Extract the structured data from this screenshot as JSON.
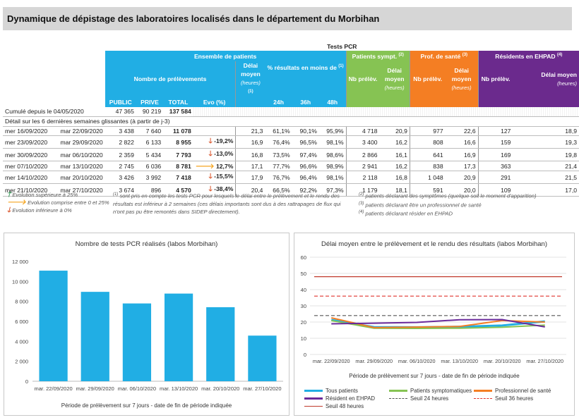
{
  "page": {
    "title": "Dynamique de dépistage des laboratoires localisés dans le département du Morbihan"
  },
  "table": {
    "top_header": "Tests PCR",
    "groups": {
      "ensemble": "Ensemble de patients",
      "sympt": "Patients sympt.",
      "sympt_note": "(2)",
      "prof": "Prof. de santé",
      "prof_note": "(3)",
      "ehpad": "Résidents en EHPAD",
      "ehpad_note": "(4)"
    },
    "subheaders": {
      "nb_prelevements": "Nombre de prélèvements",
      "delai_moyen": "Délai moyen",
      "heures": "(heures)",
      "heures_note": "(1)",
      "pct_resultats": "% résultats en moins de",
      "pct_note": "(1)",
      "public": "PUBLIC",
      "prive": "PRIVE",
      "total": "TOTAL",
      "evo": "Evo (%)",
      "h24": "24h",
      "h36": "36h",
      "h48": "48h",
      "nb_prelev": "Nb prélèv.",
      "delai": "Délai moyen",
      "heures_short": "(heures)"
    },
    "cumul": {
      "label": "Cumulé depuis le 04/05/2020",
      "public": "47 365",
      "prive": "90 219",
      "total": "137 584"
    },
    "detail_label": "Détail sur les 6 dernières semaines glissantes (à partir de j-3)",
    "rows": [
      {
        "start": "mer 16/09/2020",
        "end": "mar 22/09/2020",
        "public": "3 438",
        "prive": "7 640",
        "total": "11 078",
        "trend": "",
        "evo": "",
        "delai": "21,3",
        "p24": "61,1%",
        "p36": "90,1%",
        "p48": "95,9%",
        "s_nb": "4 718",
        "s_d": "20,9",
        "p_nb": "977",
        "p_d": "22,6",
        "e_nb": "127",
        "e_d": "18,9"
      },
      {
        "start": "mer 23/09/2020",
        "end": "mar 29/09/2020",
        "public": "2 822",
        "prive": "6 133",
        "total": "8 955",
        "trend": "down",
        "evo": "-19,2%",
        "delai": "16,9",
        "p24": "76,4%",
        "p36": "96,5%",
        "p48": "98,1%",
        "s_nb": "3 400",
        "s_d": "16,2",
        "p_nb": "808",
        "p_d": "16,6",
        "e_nb": "159",
        "e_d": "19,3"
      },
      {
        "start": "mer 30/09/2020",
        "end": "mar 06/10/2020",
        "public": "2 359",
        "prive": "5 434",
        "total": "7 793",
        "trend": "down",
        "evo": "-13,0%",
        "delai": "16,8",
        "p24": "73,5%",
        "p36": "97,4%",
        "p48": "98,6%",
        "s_nb": "2 866",
        "s_d": "16,1",
        "p_nb": "641",
        "p_d": "16,9",
        "e_nb": "169",
        "e_d": "19,8"
      },
      {
        "start": "mer 07/10/2020",
        "end": "mar 13/10/2020",
        "public": "2 745",
        "prive": "6 036",
        "total": "8 781",
        "trend": "right",
        "evo": "12,7%",
        "delai": "17,1",
        "p24": "77,7%",
        "p36": "96,6%",
        "p48": "98,9%",
        "s_nb": "2 941",
        "s_d": "16,2",
        "p_nb": "838",
        "p_d": "17,3",
        "e_nb": "363",
        "e_d": "21,4"
      },
      {
        "start": "mer 14/10/2020",
        "end": "mar 20/10/2020",
        "public": "3 426",
        "prive": "3 992",
        "total": "7 418",
        "trend": "down",
        "evo": "-15,5%",
        "delai": "17,9",
        "p24": "76,7%",
        "p36": "96,4%",
        "p48": "98,1%",
        "s_nb": "2 118",
        "s_d": "16,8",
        "p_nb": "1 048",
        "p_d": "20,9",
        "e_nb": "291",
        "e_d": "21,5"
      },
      {
        "start": "mer 21/10/2020",
        "end": "mar 27/10/2020",
        "public": "3 674",
        "prive": "896",
        "total": "4 570",
        "trend": "down",
        "evo": "-38,4%",
        "delai": "20,4",
        "p24": "66,5%",
        "p36": "92,2%",
        "p48": "97,3%",
        "s_nb": "1 179",
        "s_d": "18,1",
        "p_nb": "591",
        "p_d": "20,0",
        "e_nb": "109",
        "e_d": "17,0"
      }
    ]
  },
  "legend": {
    "up": "Evolution supérieure à 25%",
    "mid": "Evolution comprise entre 0 et 25%",
    "down": "Evolution inférieure à 0%",
    "note1_num": "(1)",
    "note1_l1": "sont pris en compte les tests PCR pour lesquels le délai entre le prélèvement et le rendu des",
    "note1_l2": "résultats est inférieur à 2 semaines (ces délais importants sont dus à des rattrapages de flux qui",
    "note1_l3": "n'ont pas pu être remontés dans SIDEP directement).",
    "note2_num": "(2)",
    "note2": "patients déclarant des symptômes (quelque soit le moment d'apparition)",
    "note3_num": "(3)",
    "note3": "patients déclarant être un professionnel de santé",
    "note4_num": "(4)",
    "note4": "patients déclarant résider en EHPAD"
  },
  "colors": {
    "blue": "#21aee4",
    "green": "#86c353",
    "orange": "#f47e23",
    "purple": "#6b2a8d",
    "dark_purple": "#6a2a9a",
    "seuil24": "#555555",
    "seuil36": "#e0332e",
    "seuil48": "#c0392b"
  },
  "chart_data": [
    {
      "type": "bar",
      "title": "Nombre de tests PCR réalisés (labos Morbihan)",
      "xlabel": "Période de prélèvement sur 7 jours - date de fin de période indiquée",
      "ylabel": "",
      "categories": [
        "mar. 22/09/2020",
        "mar. 29/09/2020",
        "mar. 06/10/2020",
        "mar. 13/10/2020",
        "mar. 20/10/2020",
        "mar. 27/10/2020"
      ],
      "values": [
        11078,
        8955,
        7793,
        8781,
        7418,
        4570
      ],
      "ylim": [
        0,
        12000
      ],
      "yticks": [
        "0",
        "2 000",
        "4 000",
        "6 000",
        "8 000",
        "10 000",
        "12 000"
      ],
      "ytick_values": [
        0,
        2000,
        4000,
        6000,
        8000,
        10000,
        12000
      ],
      "grid": false
    },
    {
      "type": "line",
      "title": "Délai moyen entre le prélèvement et le rendu des résultats (labos Morbihan)",
      "xlabel": "Période de prélèvement sur 7 jours - date de fin de période indiquée",
      "ylabel": "",
      "categories": [
        "mar. 22/09/2020",
        "mar. 29/09/2020",
        "mar. 06/10/2020",
        "mar. 13/10/2020",
        "mar. 20/10/2020",
        "mar. 27/10/2020"
      ],
      "ylim": [
        0,
        60
      ],
      "yticks": [
        0,
        10,
        20,
        30,
        40,
        50,
        60
      ],
      "grid": true,
      "legend_position": "bottom",
      "series": [
        {
          "name": "Tous patients",
          "values": [
            21.3,
            16.9,
            16.8,
            17.1,
            17.9,
            20.4
          ],
          "color": "#21aee4",
          "dash": "solid",
          "width": 3
        },
        {
          "name": "Patients symptomatiques",
          "values": [
            20.9,
            16.2,
            16.1,
            16.2,
            16.8,
            18.1
          ],
          "color": "#86c353",
          "dash": "solid",
          "width": 2
        },
        {
          "name": "Professionnel de santé",
          "values": [
            22.6,
            16.6,
            16.9,
            17.3,
            20.9,
            20.0
          ],
          "color": "#f47e23",
          "dash": "solid",
          "width": 2
        },
        {
          "name": "Résident en EHPAD",
          "values": [
            18.9,
            19.3,
            19.8,
            21.4,
            21.5,
            17.0
          ],
          "color": "#6a2a9a",
          "dash": "solid",
          "width": 2
        },
        {
          "name": "Seuil 24 heures",
          "values": [
            24,
            24,
            24,
            24,
            24,
            24
          ],
          "color": "#555555",
          "dash": "dash",
          "width": 1.2
        },
        {
          "name": "Seuil 36 heures",
          "values": [
            36,
            36,
            36,
            36,
            36,
            36
          ],
          "color": "#e0332e",
          "dash": "dash",
          "width": 1.2
        },
        {
          "name": "Seuil 48 heures",
          "values": [
            48,
            48,
            48,
            48,
            48,
            48
          ],
          "color": "#c0392b",
          "dash": "solid",
          "width": 1.2
        }
      ]
    }
  ]
}
